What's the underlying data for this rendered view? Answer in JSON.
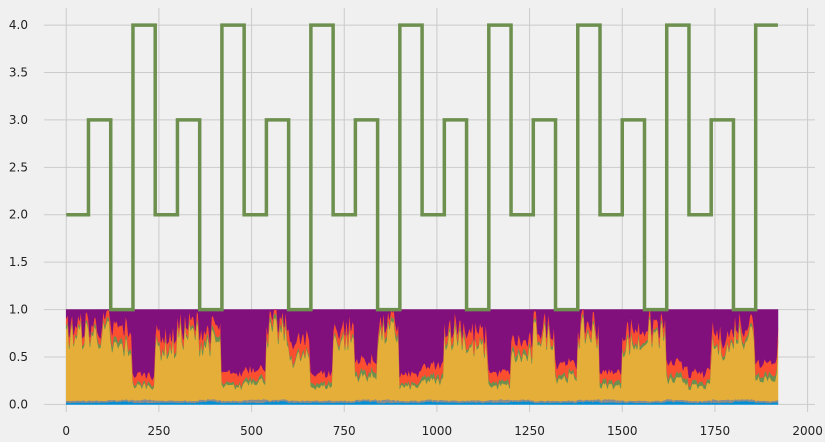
{
  "chart_data": {
    "type": "line",
    "style": "fivethirtyeight",
    "background": "#f0f0f0",
    "grid": true,
    "grid_color": "#cbcbcb",
    "xlim": [
      -60,
      2020
    ],
    "ylim": [
      -0.08,
      4.18
    ],
    "xticks": [
      0,
      250,
      500,
      750,
      1000,
      1250,
      1500,
      1750,
      2000
    ],
    "yticks": [
      0.0,
      0.5,
      1.0,
      1.5,
      2.0,
      2.5,
      3.0,
      3.5,
      4.0
    ],
    "xtick_labels": [
      "0",
      "250",
      "500",
      "750",
      "1000",
      "1250",
      "1500",
      "1750",
      "2000"
    ],
    "ytick_labels": [
      "0.0",
      "0.5",
      "1.0",
      "1.5",
      "2.0",
      "2.5",
      "3.0",
      "3.5",
      "4.0"
    ],
    "step_series": {
      "color": "#6d904f",
      "x": [
        0,
        60,
        60,
        120,
        120,
        180,
        180,
        240,
        240,
        300,
        300,
        360,
        360,
        420,
        420,
        480,
        480,
        540,
        540,
        600,
        600,
        660,
        660,
        720,
        720,
        780,
        780,
        840,
        840,
        900,
        900,
        960,
        960,
        1020,
        1020,
        1080,
        1080,
        1140,
        1140,
        1200,
        1200,
        1260,
        1260,
        1320,
        1320,
        1380,
        1380,
        1440,
        1440,
        1500,
        1500,
        1560,
        1560,
        1620,
        1620,
        1680,
        1680,
        1740,
        1740,
        1800,
        1800,
        1860,
        1860,
        1920
      ],
      "y": [
        2,
        2,
        3,
        3,
        1,
        1,
        4,
        4,
        2,
        2,
        3,
        3,
        1,
        1,
        4,
        4,
        2,
        2,
        3,
        3,
        1,
        1,
        4,
        4,
        2,
        2,
        3,
        3,
        1,
        1,
        4,
        4,
        2,
        2,
        3,
        3,
        1,
        1,
        4,
        4,
        2,
        2,
        3,
        3,
        1,
        1,
        4,
        4,
        2,
        2,
        3,
        3,
        1,
        1,
        4,
        4,
        2,
        2,
        3,
        3,
        1,
        1,
        4,
        4
      ]
    },
    "stacked_area": {
      "x_range": [
        0,
        1920
      ],
      "total": 1.0,
      "segment_x": [
        0,
        60,
        120,
        180,
        240,
        300,
        360,
        420,
        480,
        540,
        600,
        660,
        720,
        780,
        840,
        900,
        960,
        1020,
        1080,
        1140,
        1200,
        1260,
        1320,
        1380,
        1440,
        1500,
        1560,
        1620,
        1680,
        1740,
        1800,
        1860,
        1920
      ],
      "layers": [
        {
          "color": "#008fd5",
          "values": [
            0.02,
            0.02,
            0.03,
            0.02,
            0.02,
            0.02,
            0.03,
            0.02,
            0.02,
            0.03,
            0.02,
            0.02,
            0.02,
            0.03,
            0.02,
            0.02,
            0.03,
            0.02,
            0.02,
            0.02,
            0.03,
            0.02,
            0.02,
            0.03,
            0.02,
            0.02,
            0.02,
            0.03,
            0.02,
            0.02,
            0.03,
            0.02,
            0.02
          ]
        },
        {
          "color": "#8b8b8b",
          "values": [
            0.02,
            0.02,
            0.02,
            0.03,
            0.02,
            0.02,
            0.02,
            0.02,
            0.03,
            0.02,
            0.02,
            0.02,
            0.02,
            0.02,
            0.03,
            0.02,
            0.02,
            0.02,
            0.02,
            0.03,
            0.02,
            0.02,
            0.02,
            0.02,
            0.03,
            0.02,
            0.02,
            0.02,
            0.02,
            0.03,
            0.02,
            0.02,
            0.02
          ]
        },
        {
          "color": "#e5ae38",
          "values": [
            0.7,
            0.7,
            0.55,
            0.15,
            0.55,
            0.7,
            0.6,
            0.15,
            0.2,
            0.7,
            0.45,
            0.15,
            0.65,
            0.25,
            0.7,
            0.15,
            0.2,
            0.7,
            0.55,
            0.15,
            0.45,
            0.7,
            0.25,
            0.7,
            0.15,
            0.6,
            0.7,
            0.2,
            0.15,
            0.55,
            0.7,
            0.25,
            0.6
          ]
        },
        {
          "color": "#6d904f",
          "values": [
            0.03,
            0.04,
            0.05,
            0.03,
            0.04,
            0.03,
            0.05,
            0.03,
            0.04,
            0.05,
            0.03,
            0.04,
            0.03,
            0.05,
            0.04,
            0.03,
            0.05,
            0.04,
            0.03,
            0.04,
            0.05,
            0.03,
            0.04,
            0.03,
            0.05,
            0.04,
            0.03,
            0.05,
            0.04,
            0.03,
            0.04,
            0.05,
            0.03
          ]
        },
        {
          "color": "#fc4f30",
          "values": [
            0.08,
            0.07,
            0.15,
            0.1,
            0.12,
            0.08,
            0.1,
            0.12,
            0.1,
            0.08,
            0.15,
            0.1,
            0.1,
            0.12,
            0.08,
            0.1,
            0.12,
            0.08,
            0.15,
            0.1,
            0.12,
            0.08,
            0.12,
            0.08,
            0.1,
            0.12,
            0.08,
            0.12,
            0.1,
            0.12,
            0.08,
            0.12,
            0.1
          ]
        },
        {
          "color": "#810f7c",
          "values": [
            0.15,
            0.15,
            0.2,
            0.67,
            0.25,
            0.15,
            0.2,
            0.66,
            0.59,
            0.12,
            0.33,
            0.67,
            0.18,
            0.53,
            0.13,
            0.68,
            0.58,
            0.14,
            0.23,
            0.66,
            0.33,
            0.15,
            0.55,
            0.14,
            0.65,
            0.2,
            0.15,
            0.58,
            0.67,
            0.25,
            0.13,
            0.54,
            0.23
          ]
        }
      ]
    }
  }
}
